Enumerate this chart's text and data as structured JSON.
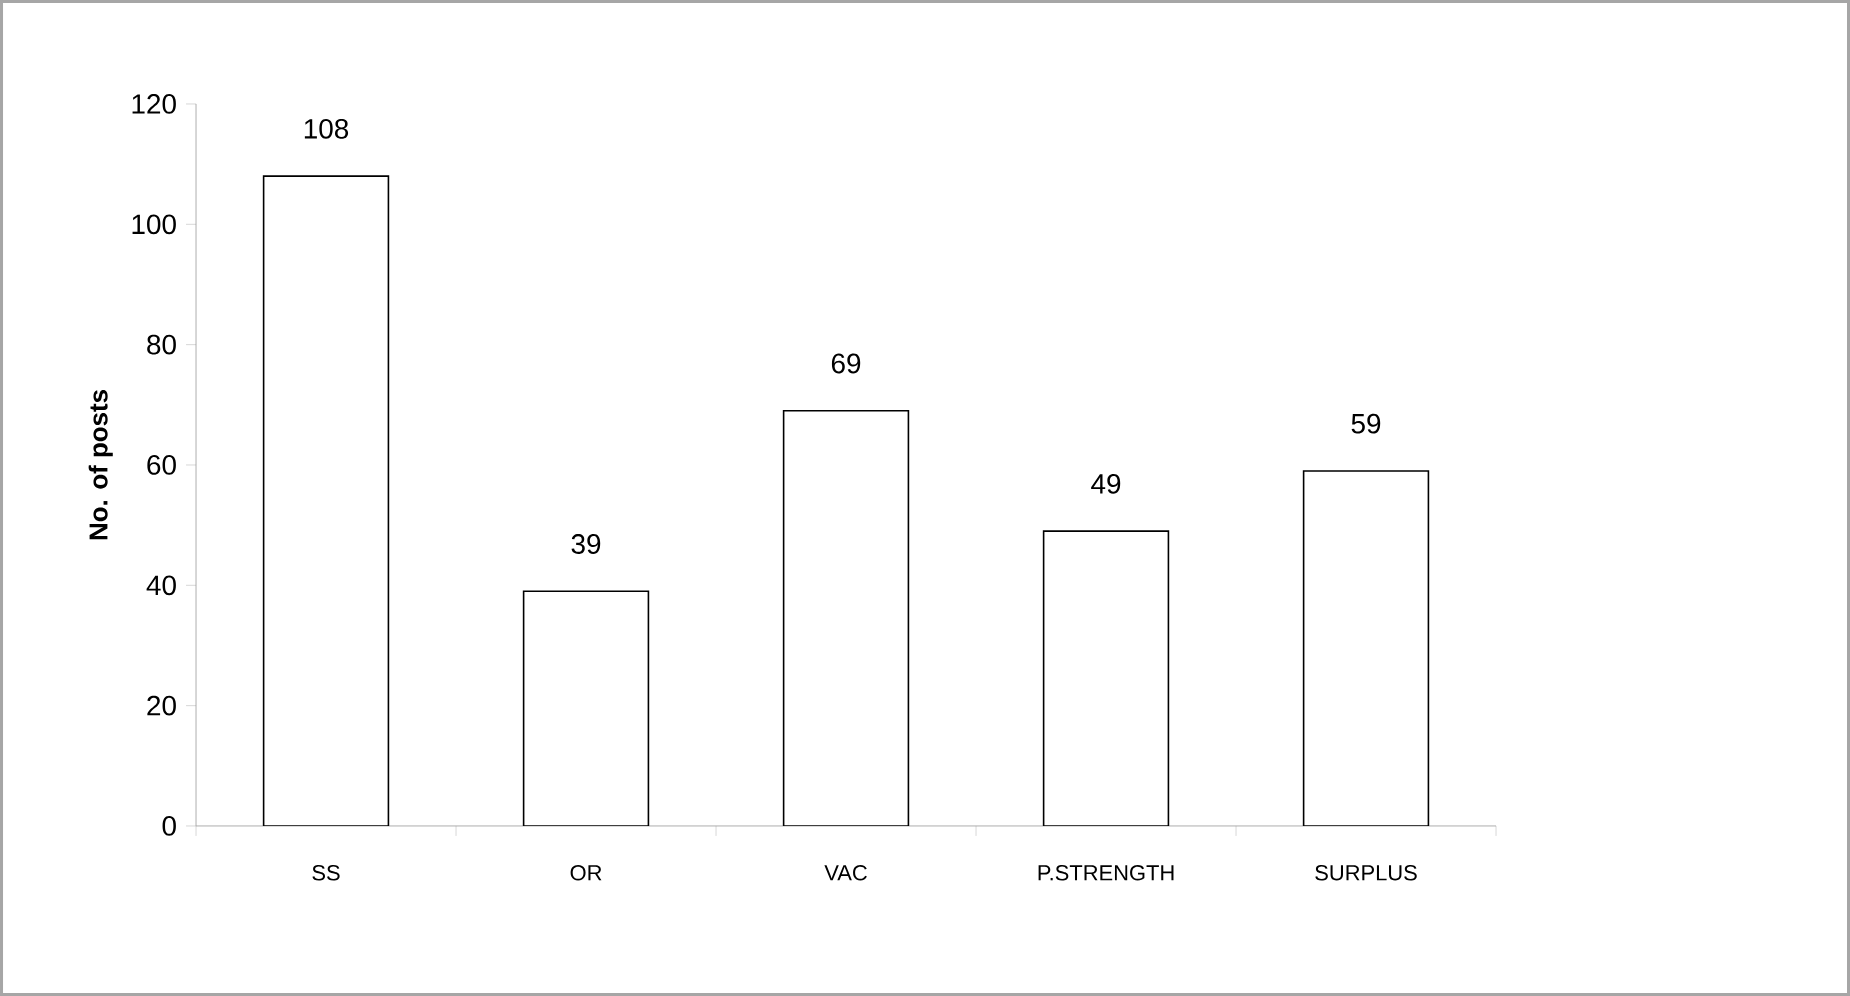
{
  "chart_data": {
    "type": "bar",
    "ylabel": "No. of posts",
    "categories": [
      "SS",
      "OR",
      "VAC",
      "P.STRENGTH",
      "SURPLUS"
    ],
    "values": [
      108,
      39,
      69,
      49,
      59
    ],
    "color": "#ffffff",
    "ylim": [
      0,
      120
    ],
    "yticks": [
      0,
      20,
      40,
      60,
      80,
      100,
      120
    ],
    "data_labels": true
  }
}
